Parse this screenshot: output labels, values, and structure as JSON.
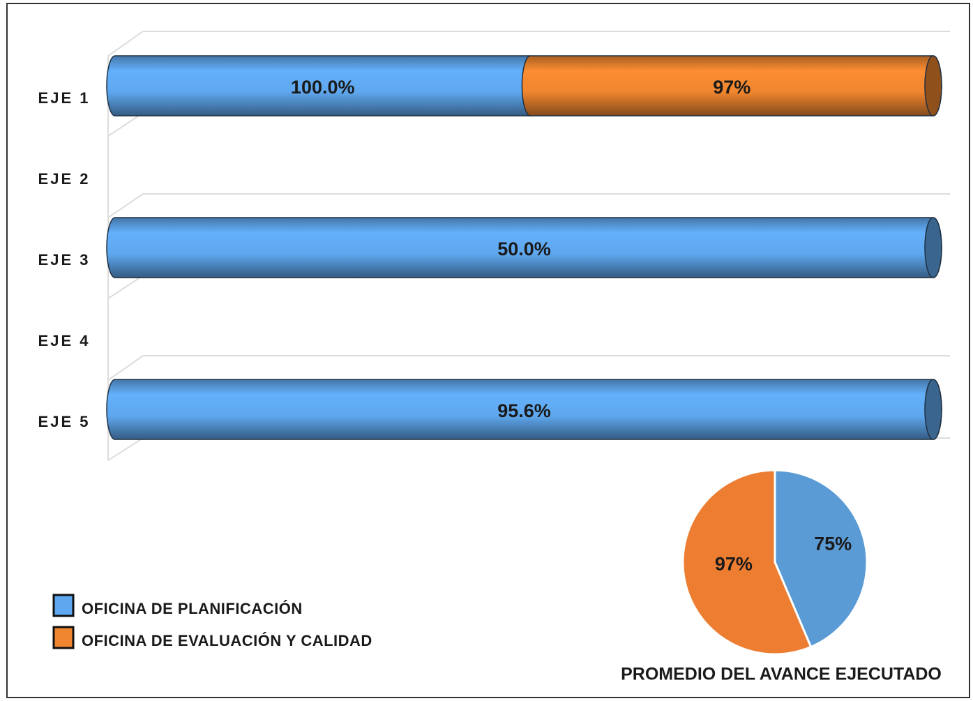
{
  "chart_data": [
    {
      "type": "bar",
      "orientation": "horizontal",
      "stacking": "percent",
      "categories": [
        "EJE 1",
        "EJE 2",
        "EJE 3",
        "EJE 4",
        "EJE 5"
      ],
      "series": [
        {
          "name": "OFICINA DE PLANIFICACIÓN",
          "color": "#5fa8ef",
          "values": [
            100.0,
            null,
            50.0,
            null,
            95.6
          ],
          "value_labels": [
            "100.0%",
            null,
            "50.0%",
            null,
            "95.6%"
          ]
        },
        {
          "name": "OFICINA DE EVALUACIÓN Y CALIDAD",
          "color": "#f0862f",
          "values": [
            97,
            null,
            null,
            null,
            null
          ],
          "value_labels": [
            "97%",
            null,
            null,
            null,
            null
          ]
        }
      ]
    },
    {
      "type": "pie",
      "title": "PROMEDIO DEL AVANCE EJECUTADO",
      "values": [
        75,
        97
      ],
      "value_labels": [
        "75%",
        "97%"
      ],
      "colors": [
        "#5b9bd5",
        "#ed7d31"
      ]
    }
  ]
}
